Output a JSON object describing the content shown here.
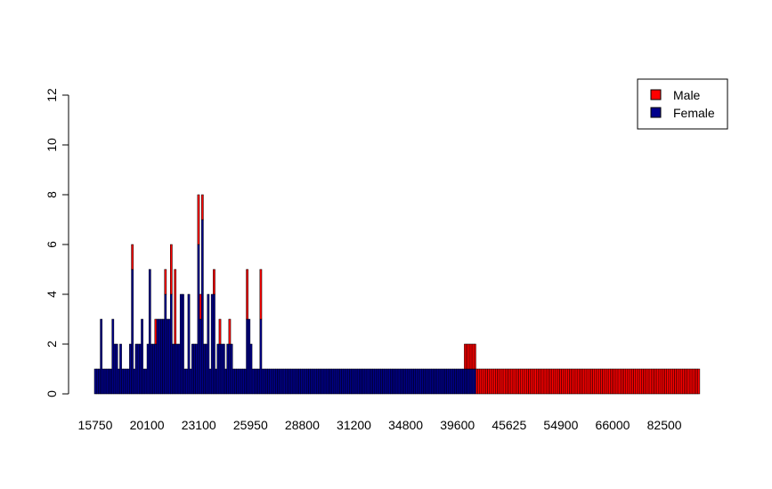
{
  "chart_data": {
    "type": "bar",
    "stacked": true,
    "title": "",
    "xlabel": "",
    "ylabel": "",
    "ylim": [
      0,
      13
    ],
    "y_ticks": [
      0,
      2,
      4,
      6,
      8,
      10,
      12
    ],
    "x_tick_labels": [
      "15750",
      "20100",
      "23100",
      "25950",
      "28800",
      "31200",
      "34800",
      "39600",
      "45625",
      "54900",
      "66000",
      "82500"
    ],
    "grid": false,
    "legend": {
      "position": "top-right",
      "entries": [
        {
          "label": "Male",
          "color": "#ff0000"
        },
        {
          "label": "Female",
          "color": "#00008b"
        }
      ]
    },
    "series": [
      {
        "name": "Female",
        "color": "#00008b",
        "values": [
          1,
          1,
          1,
          3,
          1,
          1,
          1,
          1,
          1,
          3,
          2,
          2,
          1,
          2,
          1,
          1,
          1,
          1,
          2,
          5,
          1,
          2,
          2,
          2,
          3,
          1,
          1,
          2,
          5,
          2,
          2,
          2,
          3,
          3,
          3,
          3,
          4,
          3,
          3,
          4,
          2,
          2,
          2,
          2,
          4,
          4,
          1,
          1,
          4,
          1,
          2,
          2,
          2,
          6,
          3,
          7,
          2,
          2,
          4,
          1,
          4,
          4,
          1,
          2,
          2,
          2,
          2,
          1,
          2,
          2,
          2,
          1,
          1,
          1,
          1,
          1,
          1,
          1,
          3,
          3,
          2,
          1,
          1,
          1,
          1,
          3,
          1,
          1,
          1,
          1,
          1,
          1,
          1,
          1,
          1,
          1,
          1,
          1,
          1,
          1,
          1,
          1,
          1,
          1,
          1,
          1,
          1,
          1,
          1,
          1,
          1,
          1,
          1,
          1,
          1,
          1,
          1,
          1,
          1,
          1,
          1,
          1,
          1,
          1,
          1,
          1,
          1,
          1,
          1,
          1,
          1,
          1,
          1,
          1,
          1,
          1,
          1,
          1,
          1,
          1,
          1,
          1,
          1,
          1,
          1,
          1,
          1,
          1,
          1,
          1,
          1,
          1,
          1,
          1,
          1,
          1,
          1,
          1,
          1,
          1,
          1,
          1,
          1,
          1,
          1,
          1,
          1,
          1,
          1,
          1,
          1,
          1,
          1,
          1,
          1,
          1,
          1,
          1,
          1,
          1,
          1,
          1,
          1,
          1,
          1,
          1,
          1,
          1,
          1,
          1,
          1,
          1,
          1,
          1,
          1,
          1,
          0,
          0,
          0,
          0,
          0,
          0,
          0,
          0,
          0,
          0,
          0,
          0,
          0,
          0,
          0,
          0,
          0,
          0,
          0,
          0,
          0,
          0,
          0,
          0,
          0,
          0,
          0,
          0,
          0,
          0,
          0,
          0,
          0,
          0,
          0,
          0,
          0,
          0,
          0,
          0,
          0,
          0,
          0,
          0,
          0,
          0,
          0,
          0,
          0,
          0,
          0,
          0,
          0,
          0,
          0,
          0,
          0,
          0,
          0,
          0,
          0,
          0,
          0,
          0,
          0,
          0,
          0,
          0,
          0,
          0,
          0,
          0,
          0,
          0,
          0,
          0,
          0,
          0,
          0,
          0,
          0,
          0,
          0,
          0,
          0,
          0,
          0,
          0,
          0,
          0,
          0,
          0,
          0,
          0,
          0,
          0,
          0,
          0,
          0,
          0,
          0,
          0,
          0,
          0,
          0,
          0,
          0,
          0,
          0,
          0,
          0,
          0,
          0,
          0,
          0,
          0,
          0,
          0,
          0,
          0,
          0
        ]
      },
      {
        "name": "Male",
        "color": "#ff0000",
        "values": [
          0,
          0,
          0,
          0,
          0,
          0,
          0,
          0,
          0,
          0,
          0,
          0,
          0,
          0,
          0,
          0,
          0,
          0,
          0,
          1,
          0,
          0,
          0,
          0,
          0,
          0,
          0,
          0,
          0,
          0,
          0,
          1,
          0,
          0,
          0,
          0,
          1,
          0,
          0,
          2,
          0,
          3,
          0,
          0,
          0,
          0,
          0,
          0,
          0,
          0,
          0,
          0,
          0,
          2,
          1,
          1,
          0,
          0,
          0,
          0,
          0,
          1,
          0,
          0,
          1,
          0,
          0,
          0,
          0,
          1,
          0,
          0,
          0,
          0,
          0,
          0,
          0,
          0,
          2,
          0,
          0,
          0,
          0,
          0,
          0,
          2,
          0,
          0,
          0,
          0,
          0,
          0,
          0,
          0,
          0,
          0,
          0,
          0,
          0,
          0,
          0,
          0,
          0,
          0,
          0,
          0,
          0,
          0,
          0,
          0,
          0,
          0,
          0,
          0,
          0,
          0,
          0,
          0,
          0,
          0,
          0,
          0,
          0,
          0,
          0,
          0,
          0,
          0,
          0,
          0,
          0,
          0,
          0,
          0,
          0,
          0,
          0,
          0,
          0,
          0,
          0,
          0,
          0,
          0,
          0,
          0,
          0,
          0,
          0,
          0,
          0,
          0,
          0,
          0,
          0,
          0,
          0,
          0,
          0,
          0,
          0,
          0,
          0,
          0,
          0,
          0,
          0,
          0,
          0,
          0,
          0,
          0,
          0,
          0,
          0,
          0,
          0,
          0,
          0,
          0,
          0,
          0,
          0,
          0,
          0,
          0,
          0,
          0,
          0,
          0,
          1,
          1,
          1,
          1,
          1,
          1,
          1,
          1,
          1,
          1,
          1,
          1,
          1,
          1,
          1,
          1,
          1,
          1,
          1,
          1,
          1,
          1,
          1,
          1,
          1,
          1,
          1,
          1,
          1,
          1,
          1,
          1,
          1,
          1,
          1,
          1,
          1,
          1,
          1,
          1,
          1,
          1,
          1,
          1,
          1,
          1,
          1,
          1,
          1,
          1,
          1,
          1,
          1,
          1,
          1,
          1,
          1,
          1,
          1,
          1,
          1,
          1,
          1,
          1,
          1,
          1,
          1,
          1,
          1,
          1,
          1,
          1,
          1,
          1,
          1,
          1,
          1,
          1,
          1,
          1,
          1,
          1,
          1,
          1,
          1,
          1,
          1,
          1,
          1,
          1,
          1,
          1,
          1,
          1,
          1,
          1,
          1,
          1,
          1,
          1,
          1,
          1,
          1,
          1,
          1,
          1,
          1,
          1,
          1,
          1,
          1,
          1,
          1,
          1,
          1,
          1,
          1,
          1,
          1,
          1,
          1
        ]
      }
    ]
  }
}
